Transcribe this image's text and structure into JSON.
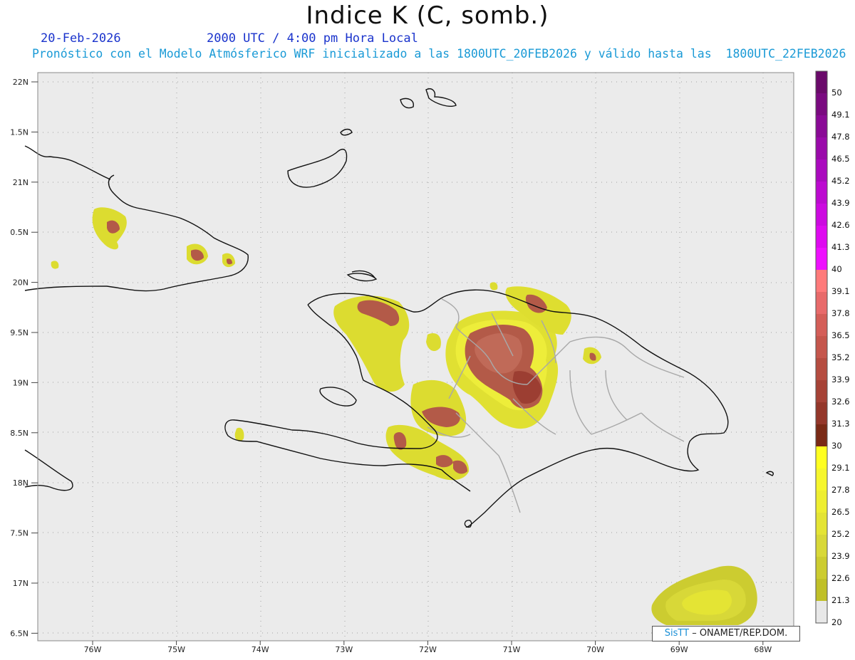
{
  "title": "Indice K (C, somb.)",
  "date": "20-Feb-2026",
  "time_line": "2000 UTC / 4:00 pm Hora Local",
  "forecast_line": "Pronóstico con el Modelo Atmósferico WRF inicializado a las 1800UTC_20FEB2026 y válido hasta las  1800UTC_22FEB2026",
  "credit": {
    "brand": "SisTT",
    "rest": " – ONAMET/REP.DOM."
  },
  "lat_labels": [
    "22N",
    "1.5N",
    "21N",
    "0.5N",
    "20N",
    "9.5N",
    "19N",
    "8.5N",
    "18N",
    "7.5N",
    "17N",
    "6.5N"
  ],
  "lon_labels": [
    "76W",
    "75W",
    "74W",
    "73W",
    "72W",
    "71W",
    "70W",
    "69W",
    "68W"
  ],
  "colorbar": {
    "levels": [
      "50",
      "49.1",
      "47.8",
      "46.5",
      "45.2",
      "43.9",
      "42.6",
      "41.3",
      "40",
      "39.1",
      "37.8",
      "36.5",
      "35.2",
      "33.9",
      "32.6",
      "31.3",
      "30",
      "29.1",
      "27.8",
      "26.5",
      "25.2",
      "23.9",
      "22.6",
      "21.3",
      "20"
    ],
    "colors": [
      "#6a0a6a",
      "#7a0a80",
      "#8a0a96",
      "#9a0aaa",
      "#aa0abe",
      "#bc0ad0",
      "#cc0ae0",
      "#de0af0",
      "#ee10ff",
      "#ff7a7a",
      "#e86a6a",
      "#d45e58",
      "#c5564c",
      "#b54c40",
      "#a64236",
      "#94372a",
      "#7a2a16",
      "#ffff20",
      "#f6f62c",
      "#eeee30",
      "#e4e434",
      "#d8d838",
      "#cccc30",
      "#c0c028",
      "#e8e8e8"
    ]
  },
  "colors": {
    "yellow": "#dede30",
    "yellow_light": "#f2f23a",
    "red": "#b05846",
    "red_dark": "#9a3c30",
    "ocean": "#ebebeb",
    "land_border": "#111111",
    "province_border": "#a8a8a8"
  }
}
